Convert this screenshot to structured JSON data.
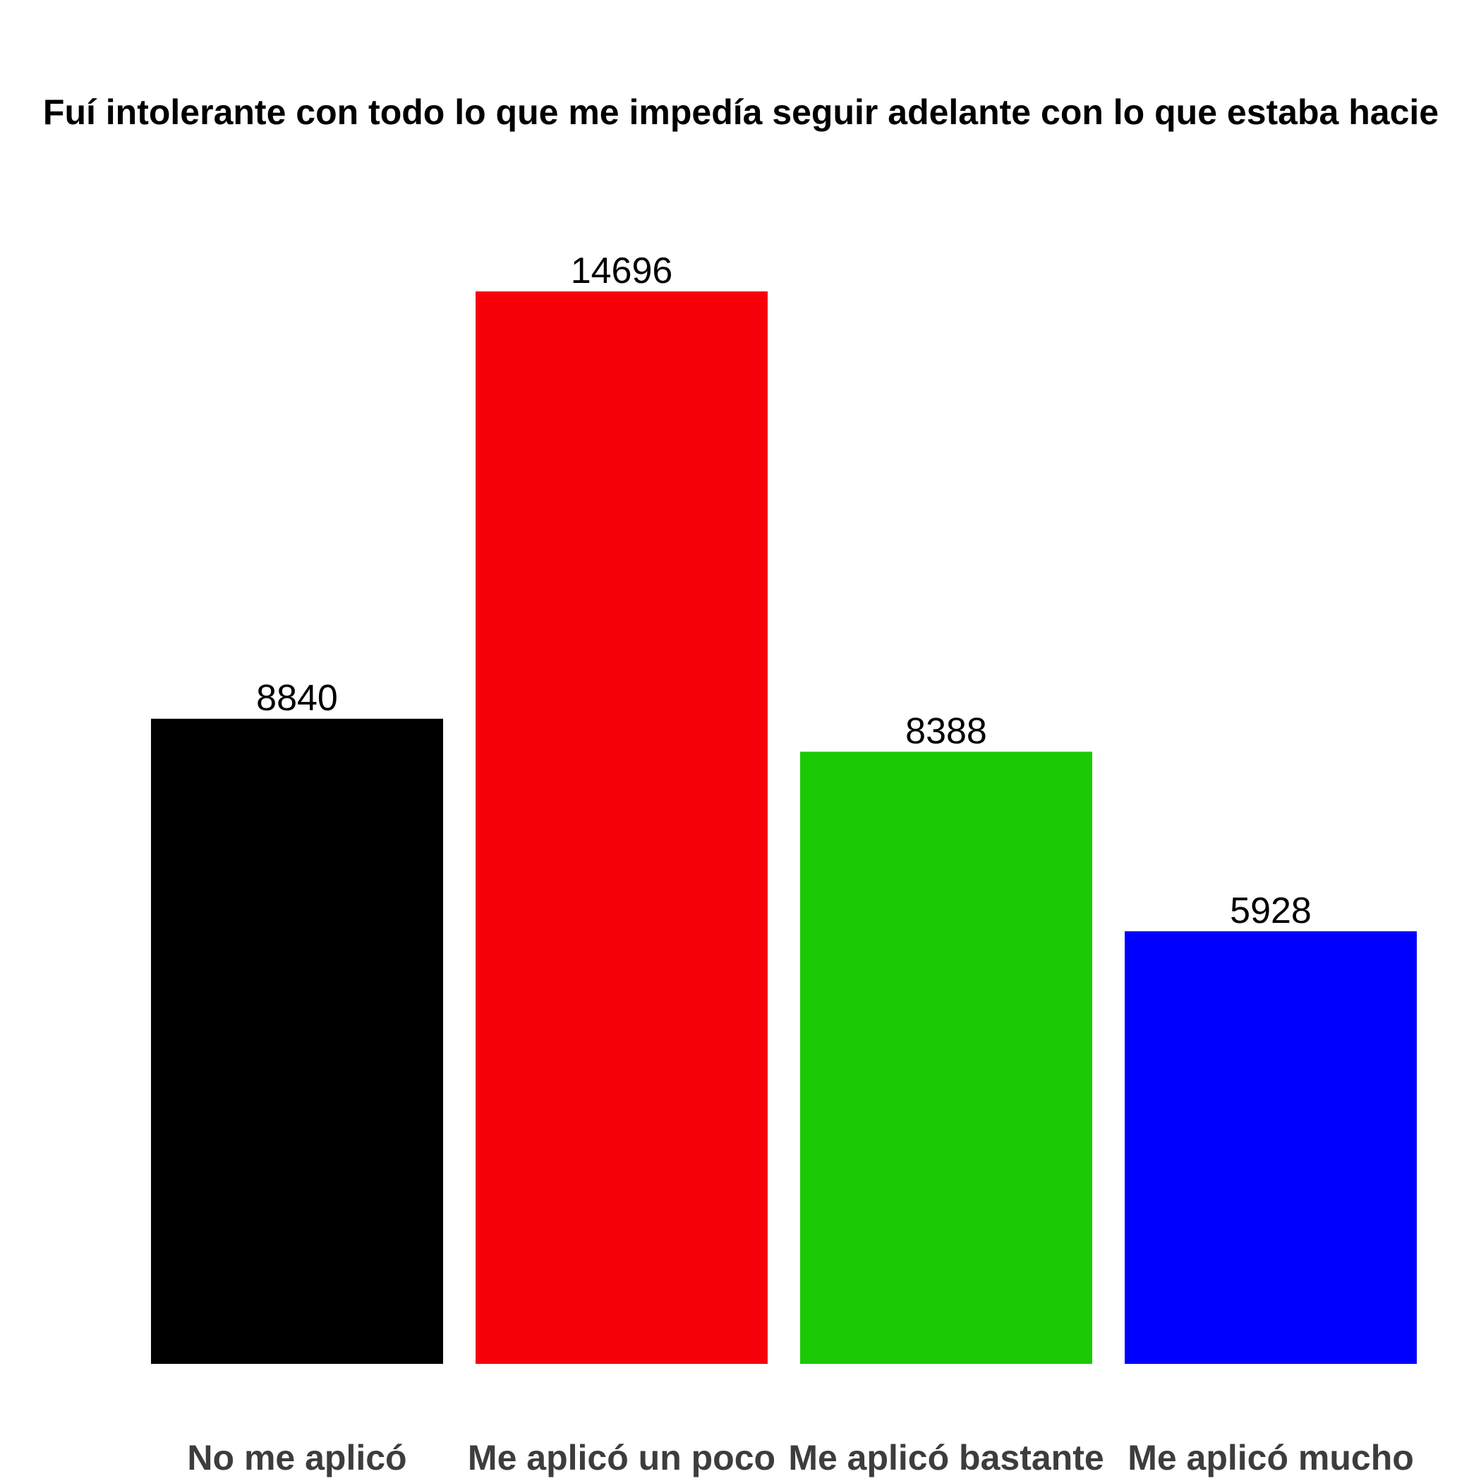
{
  "chart_data": {
    "type": "bar",
    "title": "Fuí intolerante con todo lo que me impedía seguir adelante con lo que estaba hacie",
    "xlabel": "",
    "ylabel": "",
    "categories": [
      "No me aplicó",
      "Me aplicó un poco",
      "Me aplicó bastante",
      "Me aplicó mucho"
    ],
    "values": [
      8840,
      14696,
      8388,
      5928
    ],
    "colors": [
      "#000000",
      "#f8000a",
      "#1bc905",
      "#0000ff"
    ],
    "ylim": [
      0,
      14696
    ],
    "grid": false,
    "legend": "none",
    "show_value_labels": true
  }
}
